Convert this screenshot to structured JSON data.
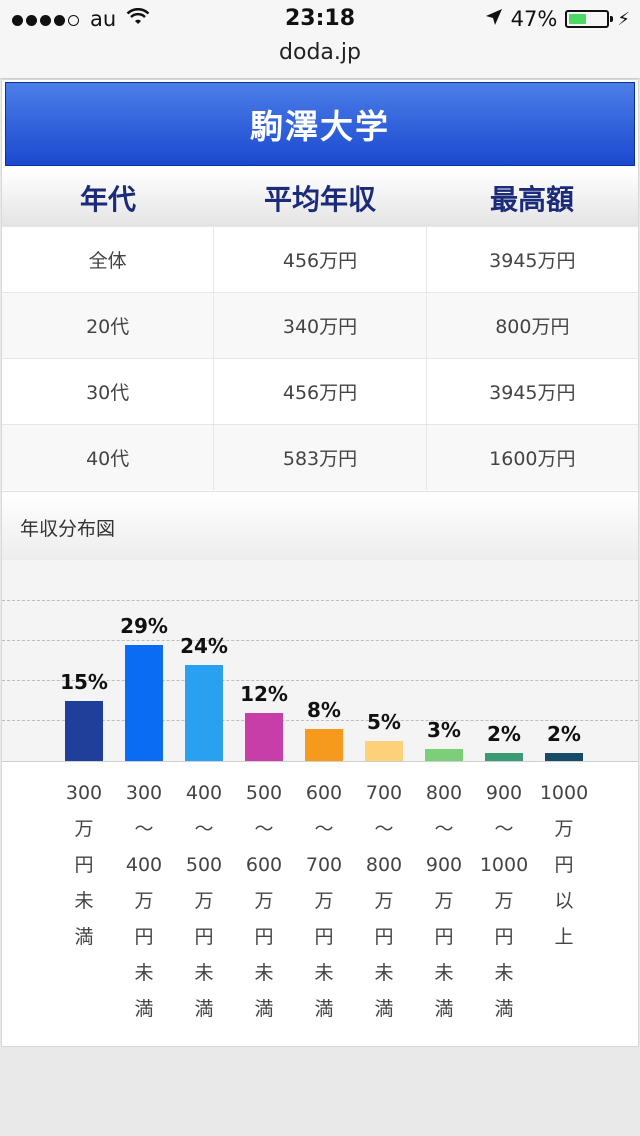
{
  "status": {
    "carrier": "au",
    "time": "23:18",
    "battery": "47%",
    "battery_level": 0.47
  },
  "browser": {
    "url": "doda.jp"
  },
  "page": {
    "title": "駒澤大学",
    "table": {
      "headers": [
        "年代",
        "平均年収",
        "最高額"
      ],
      "rows": [
        [
          "全体",
          "456万円",
          "3945万円"
        ],
        [
          "20代",
          "340万円",
          "800万円"
        ],
        [
          "30代",
          "456万円",
          "3945万円"
        ],
        [
          "40代",
          "583万円",
          "1600万円"
        ]
      ]
    },
    "section_title": "年収分布図"
  },
  "chart_data": {
    "type": "bar",
    "categories": [
      "300万円未満",
      "300〜400万円未満",
      "400〜500万円未満",
      "500〜600万円未満",
      "600〜700万円未満",
      "700〜800万円未満",
      "800〜900万円未満",
      "900〜1000万円未満",
      "1000万円以上"
    ],
    "category_lines": [
      [
        "300",
        "万",
        "円",
        "未",
        "満"
      ],
      [
        "300",
        "〜",
        "400",
        "万",
        "円",
        "未",
        "満"
      ],
      [
        "400",
        "〜",
        "500",
        "万",
        "円",
        "未",
        "満"
      ],
      [
        "500",
        "〜",
        "600",
        "万",
        "円",
        "未",
        "満"
      ],
      [
        "600",
        "〜",
        "700",
        "万",
        "円",
        "未",
        "満"
      ],
      [
        "700",
        "〜",
        "800",
        "万",
        "円",
        "未",
        "満"
      ],
      [
        "800",
        "〜",
        "900",
        "万",
        "円",
        "未",
        "満"
      ],
      [
        "900",
        "〜",
        "1000",
        "万",
        "円",
        "未",
        "満"
      ],
      [
        "1000",
        "万",
        "円",
        "以",
        "上"
      ]
    ],
    "values": [
      15,
      29,
      24,
      12,
      8,
      5,
      3,
      2,
      2
    ],
    "labels": [
      "15%",
      "29%",
      "24%",
      "12%",
      "8%",
      "5%",
      "3%",
      "2%",
      "2%"
    ],
    "colors": [
      "#1f3f9a",
      "#0a6cf2",
      "#2aa0f0",
      "#c83ea8",
      "#f59a1c",
      "#fdd17a",
      "#7ccf78",
      "#3c9a74",
      "#164c68"
    ],
    "ylim": [
      0,
      40
    ],
    "gridlines": [
      10,
      20,
      30,
      40
    ],
    "grid": true
  }
}
